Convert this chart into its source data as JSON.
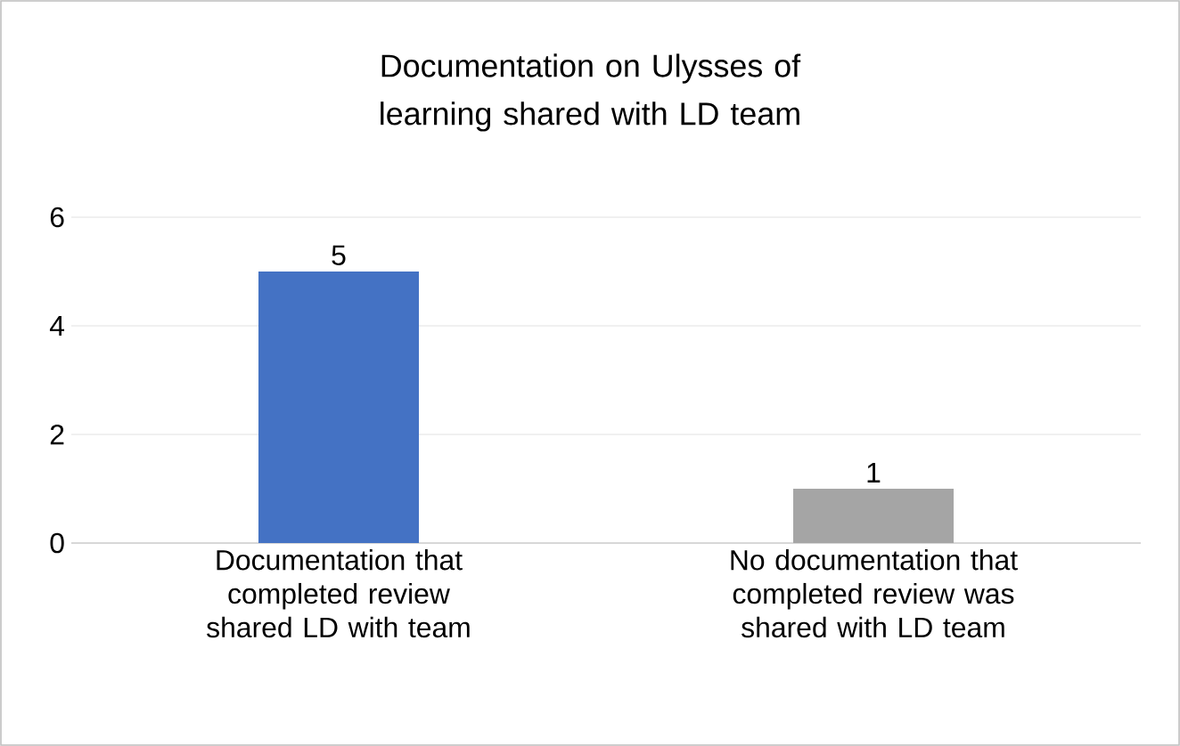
{
  "chart_data": {
    "type": "bar",
    "title": "Documentation on Ulysses of learning shared with LD team",
    "categories": [
      "Documentation that completed review shared LD with team",
      "No documentation that completed review was shared with LD team"
    ],
    "values": [
      5,
      1
    ],
    "colors": [
      "#4472c4",
      "#a5a5a5"
    ],
    "ylim": [
      0,
      6
    ],
    "yticks": [
      0,
      2,
      4,
      6
    ],
    "grid": "y",
    "data_labels": true
  }
}
